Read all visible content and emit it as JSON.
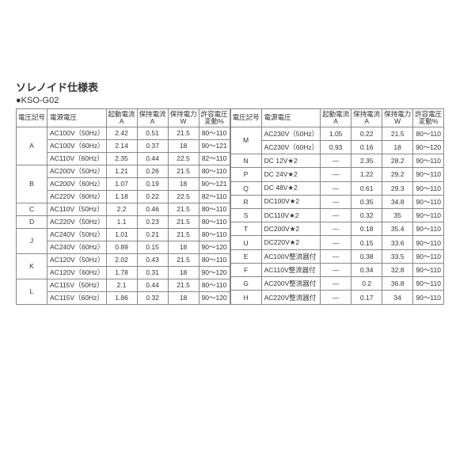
{
  "title": "ソレノイド仕様表",
  "subtitle": "●KSO-G02",
  "headers": [
    "電圧記号",
    "電源電圧",
    "起動電流\nA",
    "保持電流\nA",
    "保持電力\nW",
    "許容電圧\n変動%"
  ],
  "left_rows": [
    {
      "code": "A",
      "span": 3,
      "psv": "AC100V（50Hz）",
      "c1": "2.42",
      "c2": "0.51",
      "c3": "21.5",
      "c4": "80～110"
    },
    {
      "psv": "AC100V（60Hz）",
      "c1": "2.14",
      "c2": "0.37",
      "c3": "18",
      "c4": "90～121"
    },
    {
      "psv": "AC110V（60Hz）",
      "c1": "2.35",
      "c2": "0.44",
      "c3": "22.5",
      "c4": "82～110"
    },
    {
      "code": "B",
      "span": 3,
      "psv": "AC200V（50Hz）",
      "c1": "1.21",
      "c2": "0.26",
      "c3": "21.5",
      "c4": "80～110"
    },
    {
      "psv": "AC200V（60Hz）",
      "c1": "1.07",
      "c2": "0.19",
      "c3": "18",
      "c4": "90～121"
    },
    {
      "psv": "AC220V（60Hz）",
      "c1": "1.18",
      "c2": "0.22",
      "c3": "22.5",
      "c4": "82～110"
    },
    {
      "code": "C",
      "span": 1,
      "psv": "AC110V（50Hz）",
      "c1": "2.2",
      "c2": "0.46",
      "c3": "21.5",
      "c4": "80～110"
    },
    {
      "code": "D",
      "span": 1,
      "psv": "AC220V（50Hz）",
      "c1": "1.1",
      "c2": "0.23",
      "c3": "21.5",
      "c4": "80～110"
    },
    {
      "code": "J",
      "span": 2,
      "psv": "AC240V（50Hz）",
      "c1": "1.01",
      "c2": "0.21",
      "c3": "21.5",
      "c4": "80～110"
    },
    {
      "psv": "AC240V（60Hz）",
      "c1": "0.89",
      "c2": "0.15",
      "c3": "18",
      "c4": "90～120"
    },
    {
      "code": "K",
      "span": 2,
      "psv": "AC120V（50Hz）",
      "c1": "2.02",
      "c2": "0.43",
      "c3": "21.5",
      "c4": "80～110"
    },
    {
      "psv": "AC120V（60Hz）",
      "c1": "1.78",
      "c2": "0.31",
      "c3": "18",
      "c4": "90～120"
    },
    {
      "code": "L",
      "span": 2,
      "psv": "AC115V（50Hz）",
      "c1": "2.1",
      "c2": "0.44",
      "c3": "21.5",
      "c4": "80～110"
    },
    {
      "psv": "AC115V（60Hz）",
      "c1": "1.86",
      "c2": "0.32",
      "c3": "18",
      "c4": "90～120"
    }
  ],
  "right_rows": [
    {
      "code": "M",
      "span": 2,
      "psv": "AC230V（50Hz）",
      "c1": "1.05",
      "c2": "0.22",
      "c3": "21.5",
      "c4": "80～110"
    },
    {
      "psv": "AC230V（60Hz）",
      "c1": "0.93",
      "c2": "0.16",
      "c3": "18",
      "c4": "90～120"
    },
    {
      "code": "N",
      "span": 1,
      "psv": "DC 12V★2",
      "c1": "—",
      "c2": "2.35",
      "c3": "28.2",
      "c4": "90～110"
    },
    {
      "code": "P",
      "span": 1,
      "psv": "DC 24V★2",
      "c1": "—",
      "c2": "1.22",
      "c3": "29.2",
      "c4": "90～110"
    },
    {
      "code": "Q",
      "span": 1,
      "psv": "DC 48V★2",
      "c1": "—",
      "c2": "0.61",
      "c3": "29.3",
      "c4": "90～110"
    },
    {
      "code": "R",
      "span": 1,
      "psv": "DC100V★2",
      "c1": "—",
      "c2": "0.35",
      "c3": "34.8",
      "c4": "90～110"
    },
    {
      "code": "S",
      "span": 1,
      "psv": "DC110V★2",
      "c1": "—",
      "c2": "0.32",
      "c3": "35",
      "c4": "90～110"
    },
    {
      "code": "T",
      "span": 1,
      "psv": "DC200V★2",
      "c1": "—",
      "c2": "0.18",
      "c3": "35.4",
      "c4": "90～110"
    },
    {
      "code": "U",
      "span": 1,
      "psv": "DC220V★2",
      "c1": "—",
      "c2": "0.15",
      "c3": "33.6",
      "c4": "90～110"
    },
    {
      "code": "E",
      "span": 1,
      "psv": "AC100V整流器付",
      "c1": "—",
      "c2": "0.38",
      "c3": "33.5",
      "c4": "90～110"
    },
    {
      "code": "F",
      "span": 1,
      "psv": "AC110V整流器付",
      "c1": "—",
      "c2": "0.34",
      "c3": "32.8",
      "c4": "90～110"
    },
    {
      "code": "G",
      "span": 1,
      "psv": "AC200V整流器付",
      "c1": "—",
      "c2": "0.2",
      "c3": "36.8",
      "c4": "90～110"
    },
    {
      "code": "H",
      "span": 1,
      "psv": "AC220V整流器付",
      "c1": "—",
      "c2": "0.17",
      "c3": "34",
      "c4": "90～110"
    }
  ]
}
